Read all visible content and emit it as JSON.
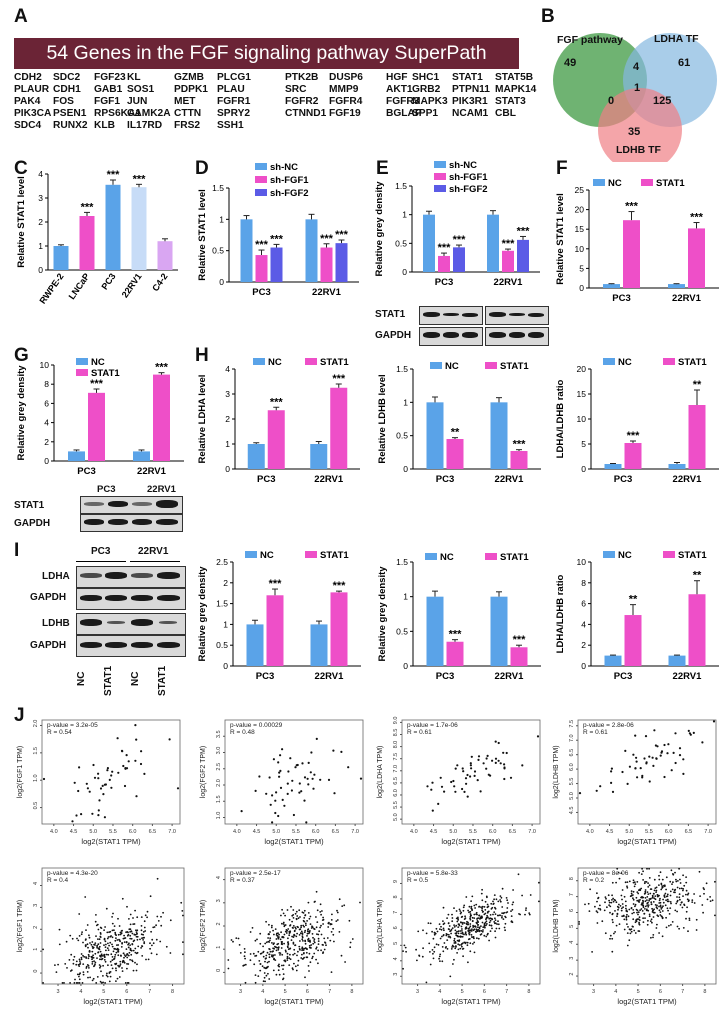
{
  "panel_letters": {
    "A": "A",
    "B": "B",
    "C": "C",
    "D": "D",
    "E": "E",
    "F": "F",
    "G": "G",
    "H": "H",
    "I": "I",
    "J": "J"
  },
  "banner": "54 Genes in the FGF signaling pathway SuperPath",
  "gene_columns": [
    [
      "CDH2",
      "PLAUR",
      "PAK4",
      "PIK3CA",
      "SDC4"
    ],
    [
      "SDC2",
      "CDH1",
      "FOS",
      "PSEN1",
      "RUNX2"
    ],
    [
      "FGF23",
      "GAB1",
      "FGF1",
      "RPS6KA1",
      "KLB"
    ],
    [
      "KL",
      "SOS1",
      "JUN",
      "CAMK2A",
      "IL17RD"
    ],
    [
      "GZMB",
      "PDPK1",
      "MET",
      "CTTN",
      "FRS2"
    ],
    [
      "PLCG1",
      "PLAU",
      "FGFR1",
      "SPRY2",
      "SSH1"
    ],
    [
      "PTK2B",
      "SRC",
      "FGFR2",
      "CTNND1",
      ""
    ],
    [
      "DUSP6",
      "MMP9",
      "FGFR4",
      "FGF19",
      ""
    ],
    [
      "HGF",
      "AKT1",
      "FGFR3",
      "BGLAP",
      ""
    ],
    [
      "SHC1",
      "GRB2",
      "MAPK3",
      "SPP1",
      ""
    ],
    [
      "STAT1",
      "PTPN11",
      "PIK3R1",
      "NCAM1",
      ""
    ],
    [
      "STAT5B",
      "MAPK14",
      "STAT3",
      "CBL",
      ""
    ]
  ],
  "venn": {
    "fgf_label": "FGF pathway",
    "ldha_label": "LDHA TF",
    "ldhb_label": "LDHB TF",
    "fgf_only": "49",
    "ldha_only": "61",
    "ldhb_only": "35",
    "fgf_ldha": "4",
    "fgf_ldhb": "0",
    "ldha_ldhb": "125",
    "all": "1"
  },
  "wb": {
    "E": {
      "stat1": "STAT1",
      "gapdh": "GAPDH"
    },
    "G": {
      "lines": [
        "PC3",
        "22RV1"
      ],
      "stat1": "STAT1",
      "gapdh": "GAPDH"
    },
    "I": {
      "lines": [
        "PC3",
        "22RV1"
      ],
      "rows": [
        "LDHA",
        "GAPDH",
        "LDHB",
        "GAPDH"
      ],
      "lanes": [
        "NC",
        "STAT1",
        "NC",
        "STAT1"
      ]
    }
  },
  "colors": {
    "nc": "#5aa3e8",
    "stat1": "#ee4fc8",
    "fgf2": "#5b5be6",
    "c_light": "#c7dcf7",
    "c_lav": "#d9a6f2",
    "venn_green": "#3f9a43",
    "venn_blue": "#84b8e0",
    "venn_red": "#ef7f84"
  },
  "chart_data": [
    {
      "id": "C",
      "type": "bar",
      "title": "",
      "ylabel": "Relative STAT1 level",
      "ylim": [
        0,
        4
      ],
      "yticks": [
        0,
        1,
        2,
        3,
        4
      ],
      "categories": [
        "RWPE-2",
        "LNCaP",
        "PC3",
        "22RV1",
        "C4-2"
      ],
      "values": [
        1.0,
        2.25,
        3.55,
        3.45,
        1.2
      ],
      "errors": [
        0.05,
        0.15,
        0.2,
        0.12,
        0.1
      ],
      "sig": [
        "",
        "***",
        "***",
        "***",
        ""
      ],
      "legend": []
    },
    {
      "id": "D",
      "type": "bar",
      "ylabel": "Relative STAT1 level",
      "ylim": [
        0,
        1.5
      ],
      "yticks": [
        0,
        0.5,
        1.0,
        1.5
      ],
      "categories": [
        "PC3",
        "22RV1"
      ],
      "series": [
        {
          "name": "sh-NC",
          "values": [
            1.0,
            1.0
          ],
          "errors": [
            0.06,
            0.08
          ],
          "sig": [
            "",
            ""
          ]
        },
        {
          "name": "sh-FGF1",
          "values": [
            0.43,
            0.55
          ],
          "errors": [
            0.08,
            0.06
          ],
          "sig": [
            "***",
            "***"
          ]
        },
        {
          "name": "sh-FGF2",
          "values": [
            0.55,
            0.62
          ],
          "errors": [
            0.05,
            0.05
          ],
          "sig": [
            "***",
            "***"
          ]
        }
      ]
    },
    {
      "id": "E",
      "type": "bar",
      "ylabel": "Relative grey density",
      "ylim": [
        0,
        1.5
      ],
      "yticks": [
        0,
        0.5,
        1.0,
        1.5
      ],
      "categories": [
        "PC3",
        "22RV1"
      ],
      "series": [
        {
          "name": "sh-NC",
          "values": [
            1.0,
            1.0
          ],
          "errors": [
            0.06,
            0.07
          ],
          "sig": [
            "",
            ""
          ]
        },
        {
          "name": "sh-FGF1",
          "values": [
            0.28,
            0.37
          ],
          "errors": [
            0.05,
            0.03
          ],
          "sig": [
            "***",
            "***"
          ]
        },
        {
          "name": "sh-FGF2",
          "values": [
            0.43,
            0.56
          ],
          "errors": [
            0.04,
            0.06
          ],
          "sig": [
            "***",
            "***"
          ]
        }
      ]
    },
    {
      "id": "F",
      "type": "bar",
      "ylabel": "Relative STAT1 level",
      "ylim": [
        0,
        25
      ],
      "yticks": [
        0,
        5,
        10,
        15,
        20,
        25
      ],
      "categories": [
        "PC3",
        "22RV1"
      ],
      "series": [
        {
          "name": "NC",
          "values": [
            1.0,
            1.0
          ],
          "errors": [
            0.1,
            0.1
          ],
          "sig": [
            "",
            ""
          ]
        },
        {
          "name": "STAT1",
          "values": [
            17.3,
            15.2
          ],
          "errors": [
            2.2,
            1.5
          ],
          "sig": [
            "***",
            "***"
          ]
        }
      ]
    },
    {
      "id": "G",
      "type": "bar",
      "ylabel": "Relative grey density",
      "ylim": [
        0,
        10
      ],
      "yticks": [
        0,
        2,
        4,
        6,
        8,
        10
      ],
      "categories": [
        "PC3",
        "22RV1"
      ],
      "series": [
        {
          "name": "NC",
          "values": [
            1.0,
            1.0
          ],
          "errors": [
            0.15,
            0.15
          ],
          "sig": [
            "",
            ""
          ]
        },
        {
          "name": "STAT1",
          "values": [
            7.1,
            9.0
          ],
          "errors": [
            0.4,
            0.2
          ],
          "sig": [
            "***",
            "***"
          ]
        }
      ]
    },
    {
      "id": "H1",
      "type": "bar",
      "ylabel": "Relative LDHA level",
      "ylim": [
        0,
        4
      ],
      "yticks": [
        0,
        1,
        2,
        3,
        4
      ],
      "categories": [
        "PC3",
        "22RV1"
      ],
      "series": [
        {
          "name": "NC",
          "values": [
            1.0,
            1.0
          ],
          "errors": [
            0.05,
            0.1
          ],
          "sig": [
            "",
            ""
          ]
        },
        {
          "name": "STAT1",
          "values": [
            2.35,
            3.25
          ],
          "errors": [
            0.12,
            0.15
          ],
          "sig": [
            "***",
            "***"
          ]
        }
      ]
    },
    {
      "id": "H2",
      "type": "bar",
      "ylabel": "Relative LDHB level",
      "ylim": [
        0,
        1.5
      ],
      "yticks": [
        0,
        0.5,
        1.0,
        1.5
      ],
      "categories": [
        "PC3",
        "22RV1"
      ],
      "series": [
        {
          "name": "NC",
          "values": [
            1.0,
            1.0
          ],
          "errors": [
            0.08,
            0.07
          ],
          "sig": [
            "",
            ""
          ]
        },
        {
          "name": "STAT1",
          "values": [
            0.45,
            0.27
          ],
          "errors": [
            0.02,
            0.02
          ],
          "sig": [
            "**",
            "***"
          ]
        }
      ]
    },
    {
      "id": "H3",
      "type": "bar",
      "ylabel": "LDHA/LDHB ratio",
      "ylim": [
        0,
        20
      ],
      "yticks": [
        0,
        5,
        10,
        15,
        20
      ],
      "categories": [
        "PC3",
        "22RV1"
      ],
      "series": [
        {
          "name": "NC",
          "values": [
            1.0,
            1.0
          ],
          "errors": [
            0.1,
            0.3
          ],
          "sig": [
            "",
            ""
          ]
        },
        {
          "name": "STAT1",
          "values": [
            5.2,
            12.8
          ],
          "errors": [
            0.4,
            3.0
          ],
          "sig": [
            "***",
            "**"
          ]
        }
      ]
    },
    {
      "id": "I1",
      "type": "bar",
      "ylabel": "Relative grey density",
      "ylim": [
        0,
        2.5
      ],
      "yticks": [
        0,
        0.5,
        1.0,
        1.5,
        2.0,
        2.5
      ],
      "categories": [
        "PC3",
        "22RV1"
      ],
      "series": [
        {
          "name": "NC",
          "values": [
            1.0,
            1.0
          ],
          "errors": [
            0.1,
            0.08
          ],
          "sig": [
            "",
            ""
          ]
        },
        {
          "name": "STAT1",
          "values": [
            1.7,
            1.77
          ],
          "errors": [
            0.15,
            0.03
          ],
          "sig": [
            "***",
            "***"
          ]
        }
      ]
    },
    {
      "id": "I2",
      "type": "bar",
      "ylabel": "Relative grey density",
      "ylim": [
        0,
        1.5
      ],
      "yticks": [
        0,
        0.5,
        1.0,
        1.5
      ],
      "categories": [
        "PC3",
        "22RV1"
      ],
      "series": [
        {
          "name": "NC",
          "values": [
            1.0,
            1.0
          ],
          "errors": [
            0.08,
            0.07
          ],
          "sig": [
            "",
            ""
          ]
        },
        {
          "name": "STAT1",
          "values": [
            0.35,
            0.27
          ],
          "errors": [
            0.03,
            0.03
          ],
          "sig": [
            "***",
            "***"
          ]
        }
      ]
    },
    {
      "id": "I3",
      "type": "bar",
      "ylabel": "LDHA/LDHB ratio",
      "ylim": [
        0,
        10
      ],
      "yticks": [
        0,
        2,
        4,
        6,
        8,
        10
      ],
      "categories": [
        "PC3",
        "22RV1"
      ],
      "series": [
        {
          "name": "NC",
          "values": [
            1.0,
            1.0
          ],
          "errors": [
            0.05,
            0.05
          ],
          "sig": [
            "",
            ""
          ]
        },
        {
          "name": "STAT1",
          "values": [
            4.9,
            6.9
          ],
          "errors": [
            1.0,
            1.3
          ],
          "sig": [
            "**",
            "**"
          ]
        }
      ]
    },
    {
      "id": "J1",
      "type": "scatter",
      "xlabel": "log2(STAT1 TPM)",
      "ylabel": "log2(FGF1 TPM)",
      "pvalue": "p-value = 3.2e-05",
      "r": "R = 0.54",
      "xlim": [
        3.7,
        7.2
      ],
      "ylim": [
        0.2,
        2.1
      ],
      "xticks": [
        "4.0",
        "4.5",
        "5.0",
        "5.5",
        "6.0",
        "6.5",
        "7.0"
      ],
      "yticks": [
        "0.5",
        "1.0",
        "1.5",
        "2.0"
      ],
      "n": 50,
      "slope": 0.33,
      "intercept": -0.7,
      "noise": 0.33,
      "seed": 11
    },
    {
      "id": "J2",
      "type": "scatter",
      "xlabel": "log2(STAT1 TPM)",
      "ylabel": "log2(FGF2 TPM)",
      "pvalue": "p-value = 0.00029",
      "r": "R = 0.48",
      "xlim": [
        3.7,
        7.2
      ],
      "ylim": [
        0.8,
        4.0
      ],
      "xticks": [
        "4.0",
        "4.5",
        "5.0",
        "5.5",
        "6.0",
        "6.5",
        "7.0"
      ],
      "yticks": [
        "1.0",
        "1.5",
        "2.0",
        "2.5",
        "3.0",
        "3.5"
      ],
      "n": 55,
      "slope": 0.4,
      "intercept": 0.0,
      "noise": 0.5,
      "seed": 23
    },
    {
      "id": "J3",
      "type": "scatter",
      "xlabel": "log2(STAT1 TPM)",
      "ylabel": "log2(LDHA TPM)",
      "pvalue": "p-value = 1.7e-06",
      "r": "R = 0.61",
      "xlim": [
        3.7,
        7.2
      ],
      "ylim": [
        4.8,
        9.1
      ],
      "xticks": [
        "4.0",
        "4.5",
        "5.0",
        "5.5",
        "6.0",
        "6.5",
        "7.0"
      ],
      "yticks": [
        "5.0",
        "5.5",
        "6.0",
        "6.5",
        "7.0",
        "7.5",
        "8.0",
        "8.5",
        "9.0"
      ],
      "n": 55,
      "slope": 0.75,
      "intercept": 2.9,
      "noise": 0.55,
      "seed": 37
    },
    {
      "id": "J4",
      "type": "scatter",
      "xlabel": "log2(STAT1 TPM)",
      "ylabel": "log2(LDHB TPM)",
      "pvalue": "p-value = 2.8e-06",
      "r": "R = 0.61",
      "xlim": [
        3.7,
        7.2
      ],
      "ylim": [
        4.1,
        7.7
      ],
      "xticks": [
        "4.0",
        "4.5",
        "5.0",
        "5.5",
        "6.0",
        "6.5",
        "7.0"
      ],
      "yticks": [
        "4.5",
        "5.0",
        "5.5",
        "6.0",
        "6.5",
        "7.0",
        "7.5"
      ],
      "n": 55,
      "slope": 0.65,
      "intercept": 2.7,
      "noise": 0.45,
      "seed": 41
    },
    {
      "id": "J5",
      "type": "scatter",
      "xlabel": "log2(STAT1 TPM)",
      "ylabel": "log2(FGF1 TPM)",
      "pvalue": "p-value = 4.3e-20",
      "r": "R = 0.4",
      "xlim": [
        2.3,
        8.5
      ],
      "ylim": [
        -0.5,
        4.8
      ],
      "xticks": [
        "3",
        "4",
        "5",
        "6",
        "7",
        "8"
      ],
      "yticks": [
        "0",
        "1",
        "2",
        "3",
        "4"
      ],
      "n": 420,
      "slope": 0.3,
      "intercept": -0.5,
      "noise": 0.7,
      "seed": 53
    },
    {
      "id": "J6",
      "type": "scatter",
      "xlabel": "log2(STAT1 TPM)",
      "ylabel": "log2(FGF2 TPM)",
      "pvalue": "p-value = 2.5e-17",
      "r": "R = 0.37",
      "xlim": [
        2.3,
        8.5
      ],
      "ylim": [
        -0.5,
        4.5
      ],
      "xticks": [
        "3",
        "4",
        "5",
        "6",
        "7",
        "8"
      ],
      "yticks": [
        "0",
        "1",
        "2",
        "3",
        "4"
      ],
      "n": 420,
      "slope": 0.3,
      "intercept": -0.3,
      "noise": 0.65,
      "seed": 67
    },
    {
      "id": "J7",
      "type": "scatter",
      "xlabel": "log2(STAT1 TPM)",
      "ylabel": "log2(LDHA TPM)",
      "pvalue": "p-value = 5.8e-33",
      "r": "R = 0.5",
      "xlim": [
        2.3,
        8.5
      ],
      "ylim": [
        2.5,
        10.0
      ],
      "xticks": [
        "3",
        "4",
        "5",
        "6",
        "7",
        "8"
      ],
      "yticks": [
        "3",
        "4",
        "5",
        "6",
        "7",
        "8",
        "9"
      ],
      "n": 420,
      "slope": 0.55,
      "intercept": 3.3,
      "noise": 0.8,
      "seed": 71
    },
    {
      "id": "J8",
      "type": "scatter",
      "xlabel": "log2(STAT1 TPM)",
      "ylabel": "log2(LDHB TPM)",
      "pvalue": "p-value = 8e-06",
      "r": "R = 0.2",
      "xlim": [
        2.3,
        8.5
      ],
      "ylim": [
        1.5,
        8.8
      ],
      "xticks": [
        "3",
        "4",
        "5",
        "6",
        "7",
        "8"
      ],
      "yticks": [
        "2",
        "3",
        "4",
        "5",
        "6",
        "7",
        "8"
      ],
      "n": 420,
      "slope": 0.25,
      "intercept": 5.3,
      "noise": 1.0,
      "seed": 89
    }
  ]
}
